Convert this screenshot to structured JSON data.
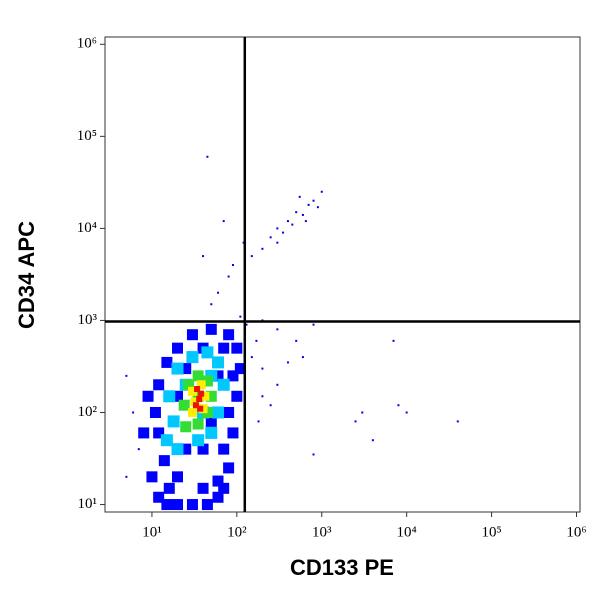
{
  "chart_data": {
    "type": "scatter",
    "xlabel": "CD133 PE",
    "ylabel": "CD34 APC",
    "log_x": true,
    "log_y": true,
    "xlim": [
      2.8,
      1100000
    ],
    "ylim": [
      8.3,
      1200000
    ],
    "xticks": [
      {
        "value": 10,
        "label": "10¹"
      },
      {
        "value": 100,
        "label": "10²"
      },
      {
        "value": 1000,
        "label": "10³"
      },
      {
        "value": 10000,
        "label": "10⁴"
      },
      {
        "value": 100000,
        "label": "10⁵"
      },
      {
        "value": 1000000,
        "label": "10⁶"
      }
    ],
    "yticks": [
      {
        "value": 10,
        "label": "10¹"
      },
      {
        "value": 100,
        "label": "10²"
      },
      {
        "value": 1000,
        "label": "10³"
      },
      {
        "value": 10000,
        "label": "10⁴"
      },
      {
        "value": 100000,
        "label": "10⁵"
      },
      {
        "value": 1000000,
        "label": "10⁶"
      }
    ],
    "gate_x": 124,
    "gate_y": 975,
    "series": [
      {
        "color": "#0000ee",
        "marker_size": 2,
        "x": [
          250,
          300,
          400,
          500,
          700,
          800,
          600,
          350,
          200,
          150,
          450,
          900,
          1000,
          550,
          650,
          300,
          120,
          80,
          60,
          50,
          70,
          45,
          40,
          90,
          200,
          300,
          500,
          800,
          150,
          200,
          300,
          250,
          180,
          400,
          600,
          3000,
          2500,
          7000,
          8000,
          10000,
          40000,
          4000,
          800,
          200,
          170,
          130,
          110,
          5,
          6,
          5,
          7
        ],
        "y": [
          8000,
          10000,
          12000,
          15000,
          18000,
          20000,
          14000,
          9000,
          6000,
          5000,
          11000,
          17000,
          25000,
          22000,
          12000,
          7000,
          7000,
          3000,
          2000,
          1500,
          12000,
          60000,
          5000,
          4000,
          1000,
          800,
          600,
          900,
          400,
          300,
          200,
          120,
          80,
          350,
          400,
          100,
          80,
          600,
          120,
          100,
          80,
          50,
          35,
          150,
          600,
          900,
          1100,
          20,
          100,
          250,
          40
        ]
      },
      {
        "color": "#0000ff",
        "marker_size": 11,
        "x": [
          10,
          12,
          15,
          20,
          30,
          45,
          60,
          14,
          12,
          11,
          12,
          15,
          20,
          30,
          50,
          80,
          100,
          110,
          100,
          90,
          80,
          60,
          20,
          25,
          40,
          70,
          18,
          50,
          80,
          20,
          60,
          90,
          25,
          40,
          70,
          9,
          8,
          16,
          40,
          70
        ],
        "y": [
          20,
          12,
          10,
          10,
          10,
          10,
          12,
          30,
          60,
          100,
          200,
          350,
          500,
          700,
          800,
          700,
          500,
          300,
          150,
          60,
          25,
          18,
          20,
          40,
          40,
          40,
          80,
          80,
          100,
          150,
          250,
          250,
          300,
          500,
          500,
          150,
          60,
          15,
          15,
          15
        ]
      },
      {
        "color": "#00c8ff",
        "marker_size": 12,
        "x": [
          15,
          20,
          35,
          50,
          60,
          70,
          60,
          45,
          30,
          20,
          16,
          18,
          40,
          25,
          50
        ],
        "y": [
          50,
          40,
          50,
          60,
          100,
          200,
          350,
          450,
          400,
          300,
          150,
          80,
          100,
          200,
          250
        ]
      },
      {
        "color": "#33dd33",
        "marker_size": 11,
        "x": [
          25,
          35,
          45,
          50,
          45,
          35,
          27,
          24,
          35
        ],
        "y": [
          70,
          75,
          100,
          150,
          220,
          250,
          200,
          120,
          150
        ]
      },
      {
        "color": "#ffee00",
        "marker_size": 9,
        "x": [
          30,
          40,
          42,
          38,
          30,
          32
        ],
        "y": [
          100,
          110,
          150,
          200,
          170,
          130
        ]
      },
      {
        "color": "#ee1100",
        "marker_size": 6,
        "x": [
          33,
          36,
          38,
          34,
          37
        ],
        "y": [
          120,
          140,
          160,
          180,
          110
        ]
      }
    ]
  }
}
